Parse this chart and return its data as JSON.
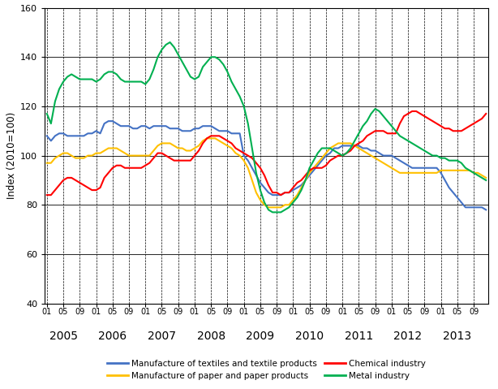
{
  "ylabel": "Index (2010=100)",
  "ylim": [
    40,
    160
  ],
  "yticks": [
    40,
    60,
    80,
    100,
    120,
    140,
    160
  ],
  "colors": {
    "textiles": "#4472C4",
    "paper": "#FFC000",
    "chemical": "#FF0000",
    "metal": "#00B050"
  },
  "legend": [
    "Manufacture of textiles and textile products",
    "Manufacture of paper and paper products",
    "Chemical industry",
    "Metal industry"
  ],
  "textiles": [
    108,
    106,
    108,
    109,
    109,
    108,
    108,
    108,
    108,
    108,
    109,
    109,
    110,
    109,
    113,
    114,
    114,
    113,
    112,
    112,
    112,
    111,
    111,
    112,
    112,
    111,
    112,
    112,
    112,
    112,
    111,
    111,
    111,
    110,
    110,
    110,
    111,
    111,
    112,
    112,
    112,
    111,
    110,
    110,
    110,
    109,
    109,
    109,
    100,
    98,
    95,
    92,
    89,
    87,
    85,
    84,
    84,
    84,
    85,
    85,
    86,
    87,
    88,
    90,
    92,
    94,
    96,
    98,
    100,
    101,
    103,
    103,
    104,
    104,
    104,
    104,
    104,
    103,
    103,
    102,
    102,
    101,
    100,
    100,
    100,
    99,
    98,
    97,
    96,
    95,
    95,
    95,
    95,
    95,
    95,
    95,
    93,
    90,
    87,
    85,
    83,
    81,
    79,
    79,
    79,
    79,
    79,
    78
  ],
  "paper": [
    97,
    97,
    99,
    100,
    101,
    101,
    100,
    99,
    99,
    99,
    100,
    100,
    101,
    101,
    102,
    103,
    103,
    103,
    102,
    101,
    100,
    100,
    100,
    100,
    100,
    100,
    102,
    104,
    105,
    105,
    105,
    104,
    103,
    103,
    102,
    102,
    103,
    104,
    106,
    107,
    107,
    107,
    106,
    105,
    104,
    103,
    101,
    100,
    98,
    95,
    90,
    85,
    82,
    80,
    79,
    79,
    79,
    79,
    80,
    80,
    82,
    84,
    87,
    90,
    93,
    95,
    97,
    99,
    101,
    103,
    104,
    105,
    105,
    105,
    105,
    104,
    103,
    102,
    101,
    100,
    99,
    98,
    97,
    96,
    95,
    94,
    93,
    93,
    93,
    93,
    93,
    93,
    93,
    93,
    93,
    93,
    94,
    94,
    94,
    94,
    94,
    94,
    94,
    94,
    93,
    93,
    92,
    91
  ],
  "chemical": [
    84,
    84,
    86,
    88,
    90,
    91,
    91,
    90,
    89,
    88,
    87,
    86,
    86,
    87,
    91,
    93,
    95,
    96,
    96,
    95,
    95,
    95,
    95,
    95,
    96,
    97,
    99,
    101,
    101,
    100,
    99,
    98,
    98,
    98,
    98,
    98,
    100,
    102,
    105,
    107,
    108,
    108,
    108,
    107,
    106,
    105,
    103,
    102,
    101,
    100,
    99,
    97,
    95,
    92,
    88,
    85,
    85,
    84,
    85,
    85,
    87,
    89,
    90,
    92,
    94,
    95,
    95,
    95,
    96,
    98,
    99,
    100,
    100,
    101,
    102,
    104,
    105,
    106,
    108,
    109,
    110,
    110,
    110,
    109,
    109,
    109,
    113,
    116,
    117,
    118,
    118,
    117,
    116,
    115,
    114,
    113,
    112,
    111,
    111,
    110,
    110,
    110,
    111,
    112,
    113,
    114,
    115,
    117
  ],
  "metal": [
    117,
    113,
    122,
    127,
    130,
    132,
    133,
    132,
    131,
    131,
    131,
    131,
    130,
    131,
    133,
    134,
    134,
    133,
    131,
    130,
    130,
    130,
    130,
    130,
    129,
    131,
    135,
    140,
    143,
    145,
    146,
    144,
    141,
    138,
    135,
    132,
    131,
    132,
    136,
    138,
    140,
    140,
    139,
    137,
    134,
    130,
    127,
    124,
    120,
    113,
    103,
    93,
    86,
    81,
    78,
    77,
    77,
    77,
    78,
    79,
    81,
    83,
    86,
    90,
    95,
    98,
    101,
    103,
    103,
    103,
    102,
    101,
    100,
    101,
    103,
    106,
    109,
    112,
    114,
    117,
    119,
    118,
    116,
    114,
    112,
    110,
    108,
    107,
    106,
    105,
    104,
    103,
    102,
    101,
    100,
    100,
    99,
    99,
    98,
    98,
    98,
    97,
    95,
    94,
    93,
    92,
    91,
    90
  ]
}
